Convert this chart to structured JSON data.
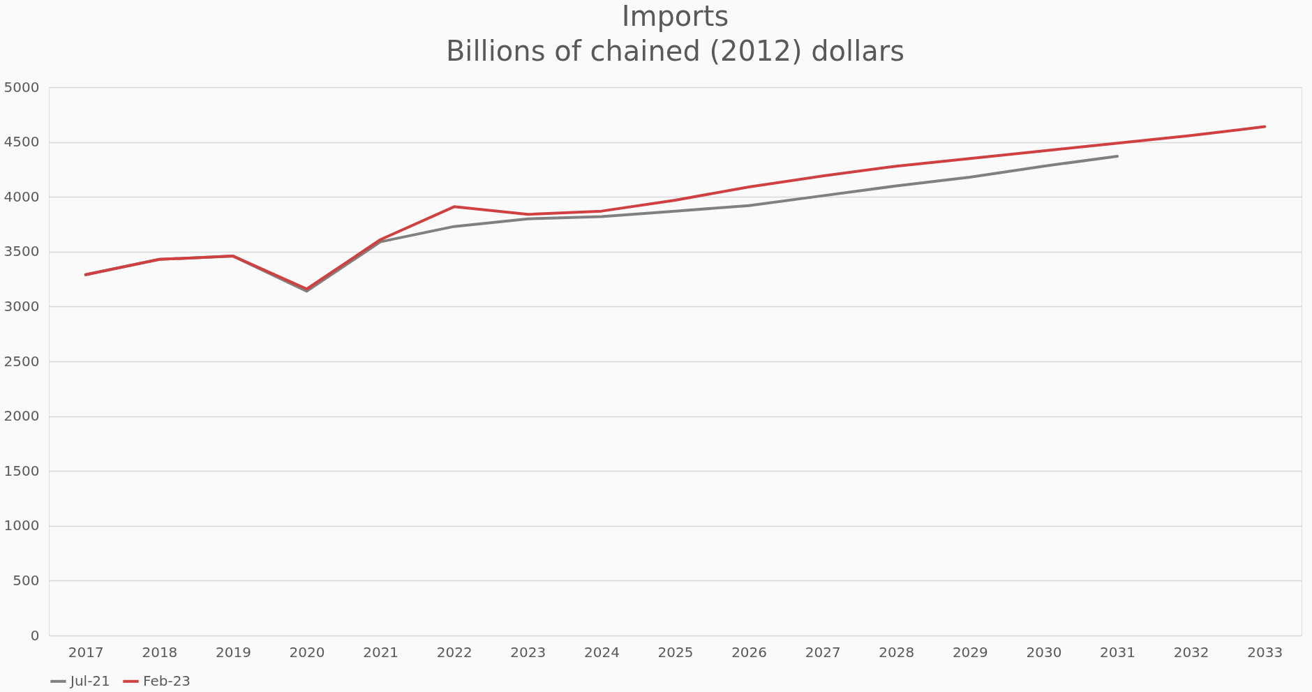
{
  "chart_data": {
    "type": "line",
    "title": "Imports",
    "subtitle": "Billions of chained (2012) dollars",
    "categories": [
      "2017",
      "2018",
      "2019",
      "2020",
      "2021",
      "2022",
      "2023",
      "2024",
      "2025",
      "2026",
      "2027",
      "2028",
      "2029",
      "2030",
      "2031",
      "2032",
      "2033"
    ],
    "series": [
      {
        "name": "Jul-21",
        "color": "#808080",
        "values": [
          3290,
          3430,
          3460,
          3140,
          3590,
          3730,
          3800,
          3820,
          3870,
          3920,
          4010,
          4100,
          4180,
          4280,
          4370,
          null,
          null
        ]
      },
      {
        "name": "Feb-23",
        "color": "#d04040",
        "values": [
          3290,
          3430,
          3460,
          3160,
          3610,
          3910,
          3840,
          3870,
          3970,
          4090,
          4190,
          4280,
          4350,
          4420,
          4490,
          4560,
          4640
        ]
      }
    ],
    "ylim": [
      0,
      5000
    ],
    "yticks": [
      0,
      500,
      1000,
      1500,
      2000,
      2500,
      3000,
      3500,
      4000,
      4500,
      5000
    ],
    "grid": "y",
    "legend": "bottom",
    "marker": "none",
    "line_style": "solid"
  }
}
